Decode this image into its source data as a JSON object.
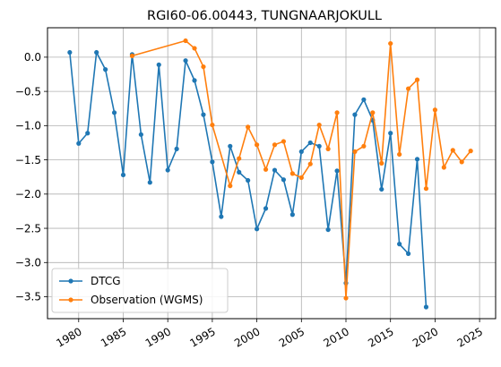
{
  "chart_data": {
    "type": "line",
    "title": "RGI60-06.00443, TUNGNAARJOKULL",
    "xlabel": "",
    "ylabel": "",
    "xlim": [
      1976.5,
      2026.8
    ],
    "ylim": [
      -3.82,
      0.43
    ],
    "xticks": [
      1980,
      1985,
      1990,
      1995,
      2000,
      2005,
      2010,
      2015,
      2020,
      2025
    ],
    "yticks": [
      0.0,
      -0.5,
      -1.0,
      -1.5,
      -2.0,
      -2.5,
      -3.0,
      -3.5
    ],
    "ytick_labels": [
      "0.0",
      "−0.5",
      "−1.0",
      "−1.5",
      "−2.0",
      "−2.5",
      "−3.0",
      "−3.5"
    ],
    "grid": true,
    "legend": "lower-left",
    "series": [
      {
        "name": "DTCG",
        "color": "#1f77b4",
        "x": [
          1979,
          1980,
          1981,
          1982,
          1983,
          1984,
          1985,
          1986,
          1987,
          1988,
          1989,
          1990,
          1991,
          1992,
          1993,
          1994,
          1995,
          1996,
          1997,
          1998,
          1999,
          2000,
          2001,
          2002,
          2003,
          2004,
          2005,
          2006,
          2007,
          2008,
          2009,
          2010,
          2011,
          2012,
          2013,
          2014,
          2015,
          2016,
          2017,
          2018,
          2019
        ],
        "y": [
          0.07,
          -1.26,
          -1.11,
          0.07,
          -0.18,
          -0.81,
          -1.72,
          0.04,
          -1.13,
          -1.83,
          -0.11,
          -1.65,
          -1.34,
          -0.05,
          -0.34,
          -0.84,
          -1.53,
          -2.33,
          -1.3,
          -1.68,
          -1.8,
          -2.51,
          -2.21,
          -1.65,
          -1.79,
          -2.3,
          -1.38,
          -1.25,
          -1.3,
          -2.52,
          -1.66,
          -3.3,
          -0.84,
          -0.62,
          -0.92,
          -1.93,
          -1.11,
          -2.73,
          -2.87,
          -1.49,
          -3.65
        ]
      },
      {
        "name": "Observation (WGMS)",
        "color": "#ff7f0e",
        "x": [
          1986,
          1992,
          1993,
          1994,
          1995,
          1997,
          1998,
          1999,
          2000,
          2001,
          2002,
          2003,
          2004,
          2005,
          2006,
          2007,
          2008,
          2009,
          2010,
          2011,
          2012,
          2013,
          2014,
          2015,
          2016,
          2017,
          2018,
          2019,
          2020,
          2021,
          2022,
          2023,
          2024
        ],
        "y": [
          0.02,
          0.24,
          0.13,
          -0.14,
          -0.99,
          -1.88,
          -1.48,
          -1.02,
          -1.28,
          -1.64,
          -1.28,
          -1.23,
          -1.7,
          -1.76,
          -1.56,
          -0.99,
          -1.34,
          -0.81,
          -3.52,
          -1.38,
          -1.3,
          -0.81,
          -1.55,
          0.2,
          -1.42,
          -0.46,
          -0.33,
          -1.92,
          -0.77,
          -1.61,
          -1.36,
          -1.53,
          -1.37
        ]
      }
    ]
  }
}
